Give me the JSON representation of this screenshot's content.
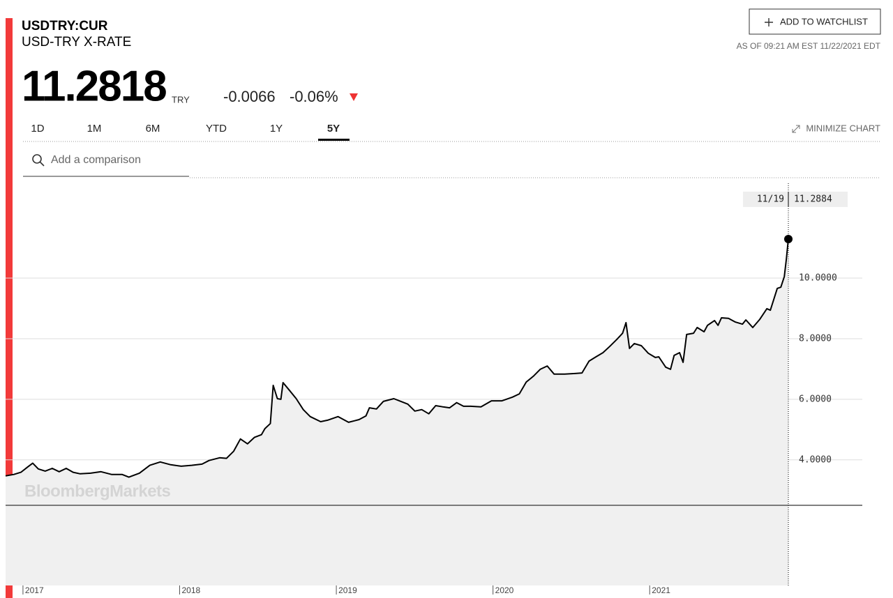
{
  "header": {
    "symbol": "USDTRY:CUR",
    "name": "USD-TRY X-RATE",
    "price": "11.2818",
    "currency": "TRY",
    "change": "-0.0066",
    "change_pct": "-0.06%",
    "watchlist_button": "ADD TO WATCHLIST",
    "as_of": "AS OF 09:21 AM EST 11/22/2021 EDT"
  },
  "tabs": [
    "1D",
    "1M",
    "6M",
    "YTD",
    "1Y",
    "5Y"
  ],
  "minimize": "MINIMIZE CHART",
  "search_placeholder": "Add a comparison",
  "chart_data": {
    "type": "line",
    "watermark": "BloombergMarkets",
    "hover_date": "11/19",
    "color": "#000000",
    "x": [
      2016.889,
      2016.942,
      2016.987,
      2017.031,
      2017.062,
      2017.098,
      2017.142,
      2017.187,
      2017.231,
      2017.276,
      2017.32,
      2017.365,
      2017.432,
      2017.498,
      2017.565,
      2017.632,
      2017.676,
      2017.743,
      2017.81,
      2017.876,
      2017.943,
      2018.01,
      2018.077,
      2018.143,
      2018.188,
      2018.255,
      2018.299,
      2018.344,
      2018.388,
      2018.433,
      2018.477,
      2018.522,
      2018.544,
      2018.579,
      2018.597,
      2018.624,
      2018.646,
      2018.66,
      2018.7,
      2018.744,
      2018.789,
      2018.833,
      2018.9,
      2018.944,
      2019.011,
      2019.078,
      2019.145,
      2019.189,
      2019.211,
      2019.256,
      2019.3,
      2019.367,
      2019.412,
      2019.456,
      2019.501,
      2019.545,
      2019.59,
      2019.634,
      2019.679,
      2019.723,
      2019.768,
      2019.812,
      2019.857,
      2019.923,
      2019.99,
      2020.057,
      2020.124,
      2020.168,
      2020.212,
      2020.257,
      2020.301,
      2020.346,
      2020.39,
      2020.457,
      2020.524,
      2020.568,
      2020.613,
      2020.657,
      2020.702,
      2020.746,
      2020.791,
      2020.827,
      2020.849,
      2020.871,
      2020.902,
      2020.947,
      2020.991,
      2021.036,
      2021.058,
      2021.102,
      2021.133,
      2021.156,
      2021.191,
      2021.213,
      2021.236,
      2021.28,
      2021.303,
      2021.347,
      2021.369,
      2021.414,
      2021.436,
      2021.458,
      2021.503,
      2021.547,
      2021.592,
      2021.614,
      2021.658,
      2021.703,
      2021.748,
      2021.77,
      2021.814,
      2021.837,
      2021.859,
      2021.872,
      2021.885
    ],
    "values": [
      3.47,
      3.52,
      3.59,
      3.77,
      3.89,
      3.7,
      3.63,
      3.72,
      3.61,
      3.72,
      3.59,
      3.54,
      3.56,
      3.61,
      3.52,
      3.52,
      3.43,
      3.56,
      3.82,
      3.93,
      3.84,
      3.79,
      3.82,
      3.86,
      3.98,
      4.07,
      4.05,
      4.28,
      4.69,
      4.53,
      4.74,
      4.83,
      5.03,
      5.2,
      6.46,
      6.02,
      6.0,
      6.55,
      6.3,
      6.02,
      5.66,
      5.43,
      5.26,
      5.31,
      5.43,
      5.24,
      5.33,
      5.45,
      5.72,
      5.68,
      5.93,
      6.02,
      5.93,
      5.84,
      5.61,
      5.66,
      5.52,
      5.79,
      5.75,
      5.72,
      5.89,
      5.77,
      5.77,
      5.75,
      5.95,
      5.95,
      6.07,
      6.18,
      6.57,
      6.76,
      6.99,
      7.1,
      6.83,
      6.83,
      6.85,
      6.87,
      7.26,
      7.4,
      7.54,
      7.75,
      7.98,
      8.18,
      8.53,
      7.68,
      7.84,
      7.77,
      7.52,
      7.38,
      7.4,
      7.06,
      6.99,
      7.45,
      7.54,
      7.22,
      8.14,
      8.18,
      8.37,
      8.23,
      8.44,
      8.6,
      8.44,
      8.69,
      8.67,
      8.55,
      8.48,
      8.62,
      8.37,
      8.64,
      8.99,
      8.94,
      9.66,
      9.7,
      10.05,
      10.62,
      11.2884
    ],
    "xlim": [
      2016.889,
      2021.885
    ],
    "xticks": [
      2017,
      2018,
      2019,
      2020,
      2021
    ],
    "ylim": [
      2.5,
      13.13
    ],
    "yticks": [
      {
        "value": 4,
        "label": "4.0000"
      },
      {
        "value": 6,
        "label": "6.0000"
      },
      {
        "value": 8,
        "label": "8.0000"
      },
      {
        "value": 10,
        "label": "10.0000"
      }
    ],
    "grid": true
  }
}
